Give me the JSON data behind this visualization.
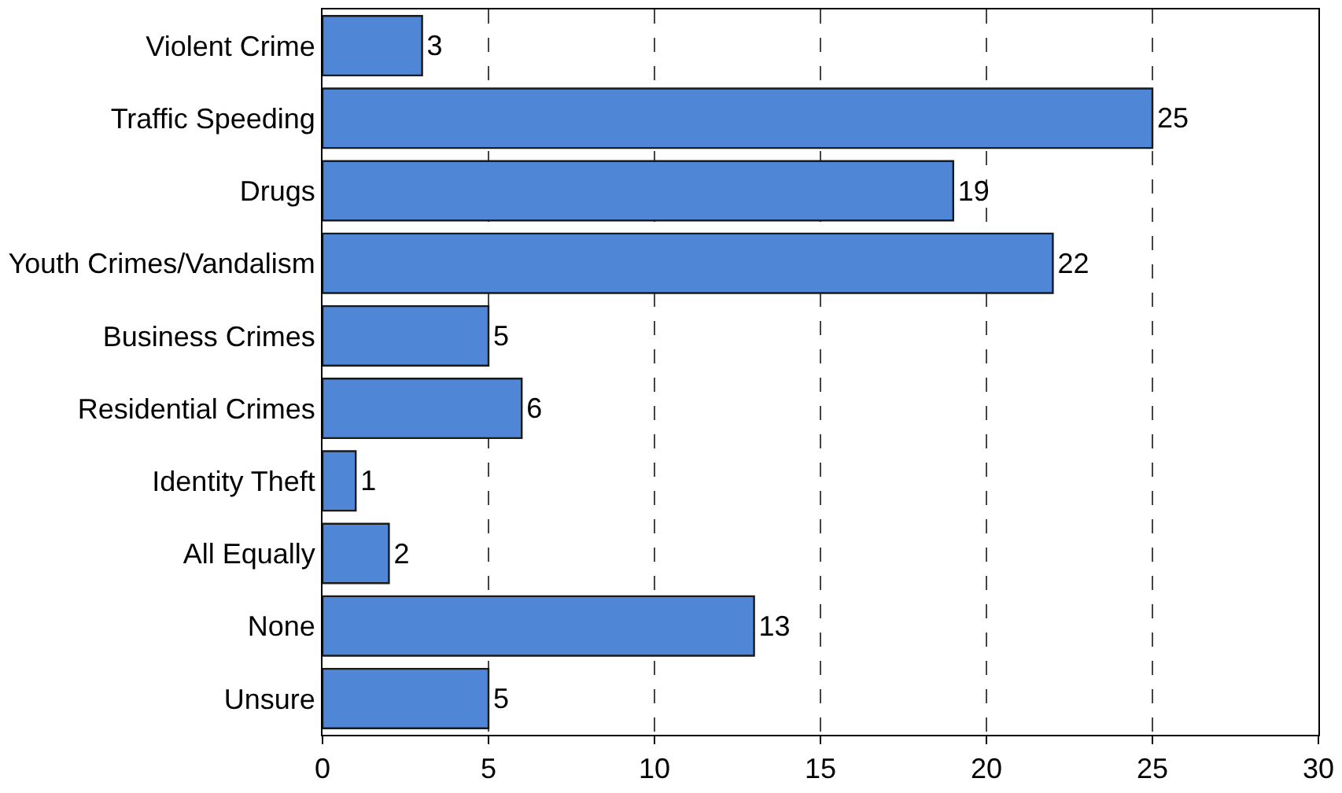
{
  "chart_data": {
    "type": "bar",
    "orientation": "horizontal",
    "categories": [
      "Violent Crime",
      "Traffic Speeding",
      "Drugs",
      "Youth Crimes/Vandalism",
      "Business Crimes",
      "Residential Crimes",
      "Identity Theft",
      "All Equally",
      "None",
      "Unsure"
    ],
    "values": [
      3,
      25,
      19,
      22,
      5,
      6,
      1,
      2,
      13,
      5
    ],
    "color": "#4f86d6",
    "xlim": [
      0,
      30
    ],
    "xticks": [
      0,
      5,
      10,
      15,
      20,
      25,
      30
    ],
    "grid": "x",
    "data_labels": true
  }
}
